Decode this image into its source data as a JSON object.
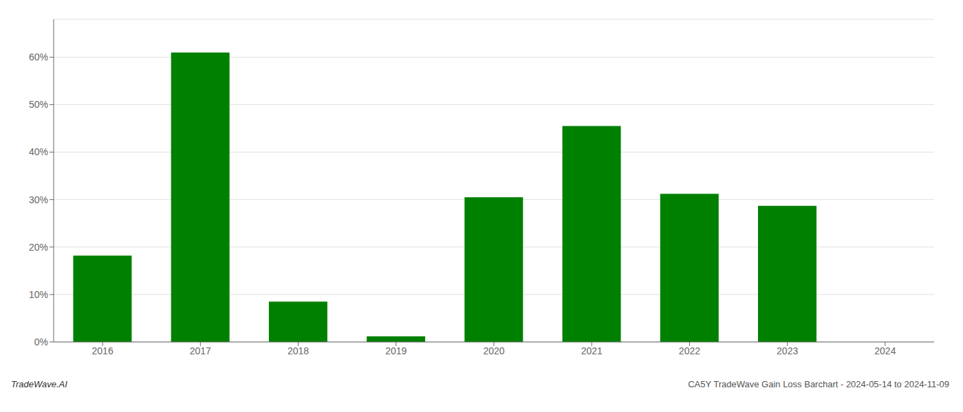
{
  "chart_data": {
    "type": "bar",
    "categories": [
      "2016",
      "2017",
      "2018",
      "2019",
      "2020",
      "2021",
      "2022",
      "2023",
      "2024"
    ],
    "values": [
      18.2,
      61.0,
      8.5,
      1.2,
      30.5,
      45.5,
      31.2,
      28.7,
      0.0
    ],
    "color": "#008000",
    "ylim": [
      0,
      68
    ],
    "yticks": [
      {
        "value": 0,
        "label": "0%"
      },
      {
        "value": 10,
        "label": "10%"
      },
      {
        "value": 20,
        "label": "20%"
      },
      {
        "value": 30,
        "label": "30%"
      },
      {
        "value": 40,
        "label": "40%"
      },
      {
        "value": 50,
        "label": "50%"
      },
      {
        "value": 60,
        "label": "60%"
      }
    ],
    "grid": true,
    "annotations": [
      "TradeWave.AI",
      "CA5Y TradeWave Gain Loss Barchart - 2024-05-14 to 2024-11-09"
    ]
  }
}
